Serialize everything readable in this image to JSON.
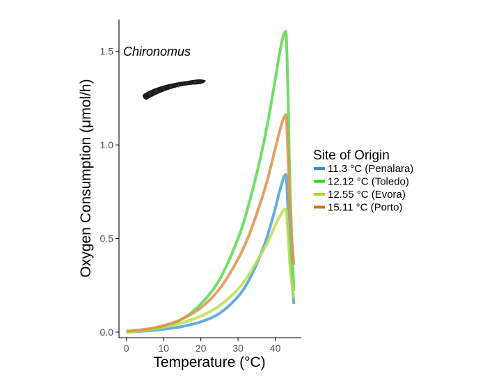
{
  "chart_data": {
    "type": "line",
    "xlabel": "Temperature (°C)",
    "ylabel": "Oxygen Consumption (μmol/h)",
    "xlim": [
      -2,
      47
    ],
    "ylim": [
      -0.03,
      1.67
    ],
    "xticks": [
      0,
      10,
      20,
      30,
      40
    ],
    "yticks": [
      0.0,
      0.5,
      1.0,
      1.5
    ],
    "ytick_labels": [
      "0.0",
      "0.5",
      "1.0",
      "1.5"
    ],
    "xtick_labels": [
      "0",
      "10",
      "20",
      "30",
      "40"
    ],
    "annotation": "Chironomus",
    "grid": false,
    "legend": {
      "title": "Site of Origin",
      "placement": "right"
    },
    "series": [
      {
        "name": "11.3 °C (Penalara)",
        "color": "#4a9fdb",
        "x": [
          0,
          5,
          10,
          15,
          20,
          25,
          30,
          33,
          36,
          38,
          40,
          41,
          42,
          42.5,
          43,
          43.5,
          44,
          45
        ],
        "y": [
          0.0,
          0.006,
          0.015,
          0.03,
          0.055,
          0.1,
          0.19,
          0.28,
          0.41,
          0.52,
          0.66,
          0.74,
          0.81,
          0.835,
          0.82,
          0.62,
          0.4,
          0.15
        ]
      },
      {
        "name": "12.12 °C (Toledo)",
        "color": "#58d84a",
        "x": [
          0,
          5,
          10,
          15,
          20,
          25,
          30,
          33,
          36,
          38,
          40,
          41,
          42,
          42.5,
          43,
          43.5,
          44,
          45
        ],
        "y": [
          0.0,
          0.01,
          0.03,
          0.07,
          0.15,
          0.28,
          0.5,
          0.69,
          0.93,
          1.12,
          1.35,
          1.47,
          1.57,
          1.595,
          1.57,
          1.2,
          0.75,
          0.22
        ]
      },
      {
        "name": "12.55 °C (Evora)",
        "color": "#b8e04a",
        "x": [
          0,
          5,
          10,
          15,
          20,
          25,
          30,
          33,
          36,
          38,
          40,
          41,
          42,
          42.5,
          43,
          43.5,
          44,
          45
        ],
        "y": [
          0.0,
          0.01,
          0.025,
          0.05,
          0.085,
          0.14,
          0.23,
          0.31,
          0.41,
          0.48,
          0.57,
          0.61,
          0.645,
          0.655,
          0.64,
          0.5,
          0.34,
          0.18
        ]
      },
      {
        "name": "15.11 °C (Porto)",
        "color": "#e0904a",
        "x": [
          0,
          5,
          10,
          15,
          20,
          25,
          30,
          33,
          36,
          38,
          40,
          41,
          42,
          42.5,
          43,
          43.5,
          44,
          45
        ],
        "y": [
          0.005,
          0.015,
          0.035,
          0.07,
          0.13,
          0.23,
          0.39,
          0.52,
          0.69,
          0.82,
          0.98,
          1.06,
          1.13,
          1.15,
          1.14,
          0.9,
          0.62,
          0.36
        ]
      }
    ]
  },
  "legend_swatch_colors": [
    "#2e8fd8",
    "#2ad314",
    "#a8dc28",
    "#d9721e"
  ]
}
